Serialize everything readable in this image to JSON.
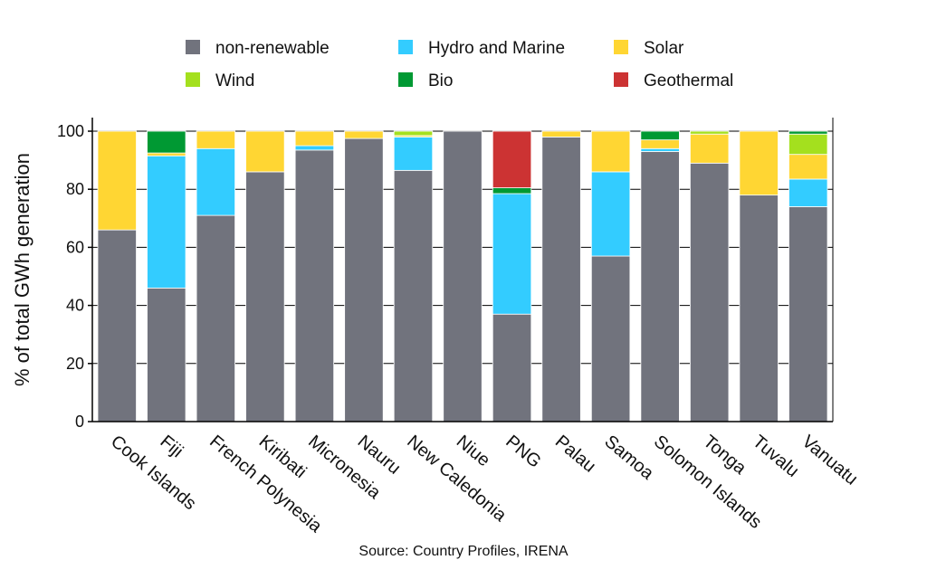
{
  "chart_data": {
    "type": "bar",
    "stacked": true,
    "categories": [
      "Cook Islands",
      "Fiji",
      "French Polynesia",
      "Kiribati",
      "Micronesia",
      "Nauru",
      "New Caledonia",
      "Niue",
      "PNG",
      "Palau",
      "Samoa",
      "Solomon Islands",
      "Tonga",
      "Tuvalu",
      "Vanuatu"
    ],
    "series": [
      {
        "name": "non-renewable",
        "color": "#71737d",
        "values": [
          66,
          46,
          71,
          86,
          93.5,
          97.5,
          86.5,
          100,
          37,
          98,
          57,
          93,
          89,
          78,
          74
        ]
      },
      {
        "name": "Hydro and Marine",
        "color": "#33ccff",
        "values": [
          0,
          45.5,
          23,
          0,
          1.5,
          0,
          11.5,
          0,
          41.5,
          0,
          29,
          1,
          0,
          0,
          9.5
        ]
      },
      {
        "name": "Solar",
        "color": "#ffd633",
        "values": [
          34,
          1,
          6,
          14,
          5,
          2.5,
          0.5,
          0,
          0,
          2,
          14,
          3,
          10,
          22,
          8.5
        ]
      },
      {
        "name": "Wind",
        "color": "#a4e01e",
        "values": [
          0,
          0,
          0,
          0,
          0,
          0,
          1.5,
          0,
          0,
          0,
          0,
          0,
          1,
          0,
          7
        ]
      },
      {
        "name": "Bio",
        "color": "#009933",
        "values": [
          0,
          7.5,
          0,
          0,
          0,
          0,
          0,
          0,
          2,
          0,
          0,
          3,
          0,
          0,
          1
        ]
      },
      {
        "name": "Geothermal",
        "color": "#cc3333",
        "values": [
          0,
          0,
          0,
          0,
          0,
          0,
          0,
          0,
          19.5,
          0,
          0,
          0,
          0,
          0,
          0
        ]
      }
    ],
    "legend": {
      "placement": "top",
      "order": [
        "non-renewable",
        "Hydro and Marine",
        "Solar",
        "Wind",
        "Bio",
        "Geothermal"
      ]
    },
    "ylabel": "% of total GWh generation",
    "xlabel": "",
    "ylim": [
      0,
      100
    ],
    "yticks": [
      0,
      20,
      40,
      60,
      80,
      100
    ],
    "grid": true,
    "grid_axis": "y",
    "source": "Source: Country Profiles, IRENA"
  }
}
